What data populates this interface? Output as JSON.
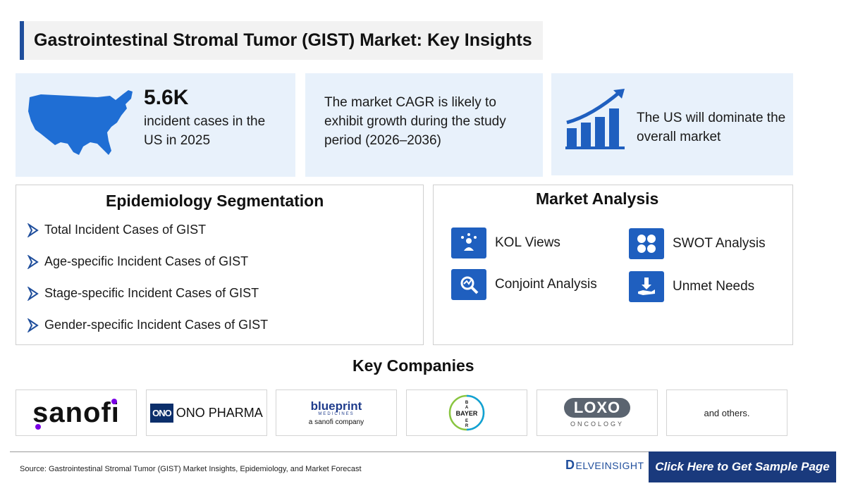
{
  "title": "Gastrointestinal Stromal Tumor (GIST)  Market: Key Insights",
  "cards": {
    "card1": {
      "big": "5.6K",
      "text": "incident cases in the US in 2025",
      "icon": "us-map-icon"
    },
    "card2": {
      "text": "The market CAGR is likely to exhibit growth during the study period (2026–2036)"
    },
    "card3": {
      "text": "The US will dominate the overall market",
      "icon": "growth-chart-icon"
    }
  },
  "epidemiology": {
    "title": "Epidemiology Segmentation",
    "items": [
      "Total Incident Cases of GIST",
      "Age-specific Incident Cases of GIST",
      "Stage-specific Incident Cases of GIST",
      "Gender-specific Incident Cases of GIST"
    ]
  },
  "market_analysis": {
    "title": "Market Analysis",
    "items": [
      {
        "label": "KOL Views",
        "icon": "kol-icon"
      },
      {
        "label": "SWOT Analysis",
        "icon": "swot-icon"
      },
      {
        "label": "Conjoint Analysis",
        "icon": "conjoint-icon"
      },
      {
        "label": "Unmet Needs",
        "icon": "unmet-needs-icon"
      }
    ]
  },
  "key_companies": {
    "title": "Key Companies",
    "logos": {
      "sanofi": "sanofi",
      "ono_box": "ONO",
      "ono": "ONO PHARMA",
      "blueprint": "blueprint",
      "blueprint_sub": "MEDICINES",
      "blueprint_co": "a sanofi company",
      "bayer": "BAYER",
      "loxo": "LOXO",
      "loxo_sub": "ONCOLOGY"
    },
    "others": "and others."
  },
  "footer": {
    "source": "Source: Gastrointestinal Stromal Tumor (GIST) Market Insights, Epidemiology, and Market Forecast",
    "brand_mark": "D",
    "brand": "ELVEINSIGHT",
    "cta": "Click Here to Get Sample Page"
  },
  "colors": {
    "accent": "#1f4e9c",
    "card_bg": "#e8f1fb",
    "icon_blue": "#1f5fbf",
    "cta_bg": "#1a3a7d"
  }
}
